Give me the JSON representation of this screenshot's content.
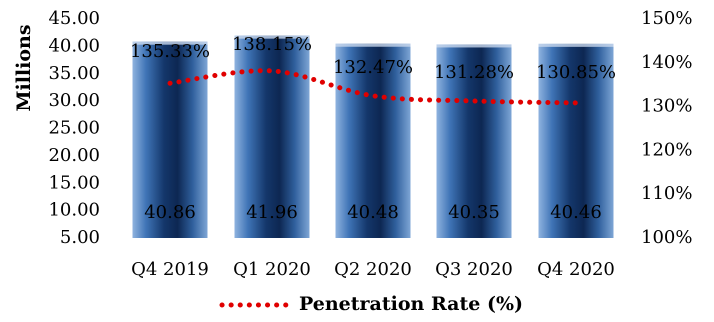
{
  "chart_data": {
    "type": "bar",
    "categories": [
      "Q4 2019",
      "Q1 2020",
      "Q2 2020",
      "Q3 2020",
      "Q4 2020"
    ],
    "series": [
      {
        "values": [
          40.86,
          41.96,
          40.48,
          40.35,
          40.46
        ],
        "labels": [
          "40.86",
          "41.96",
          "40.48",
          "40.35",
          "40.46"
        ],
        "axis": "left",
        "kind": "bar"
      },
      {
        "name": "Penetration Rate (%)",
        "values": [
          135.33,
          138.15,
          132.47,
          131.28,
          130.85
        ],
        "labels": [
          "135.33%",
          "138.15%",
          "132.47%",
          "131.28%",
          "130.85%"
        ],
        "axis": "right",
        "kind": "line",
        "style": "dotted",
        "color": "#e00000"
      }
    ],
    "ylabel": "Millions",
    "ylim": [
      5,
      45
    ],
    "yticks": [
      "5.00",
      "10.00",
      "15.00",
      "20.00",
      "25.00",
      "30.00",
      "35.00",
      "40.00",
      "45.00"
    ],
    "y2lim": [
      100,
      150
    ],
    "y2ticks": [
      "100%",
      "110%",
      "120%",
      "130%",
      "140%",
      "150%"
    ],
    "legend": "bottom",
    "grid": false,
    "bar_color": "#2a5a9a"
  }
}
